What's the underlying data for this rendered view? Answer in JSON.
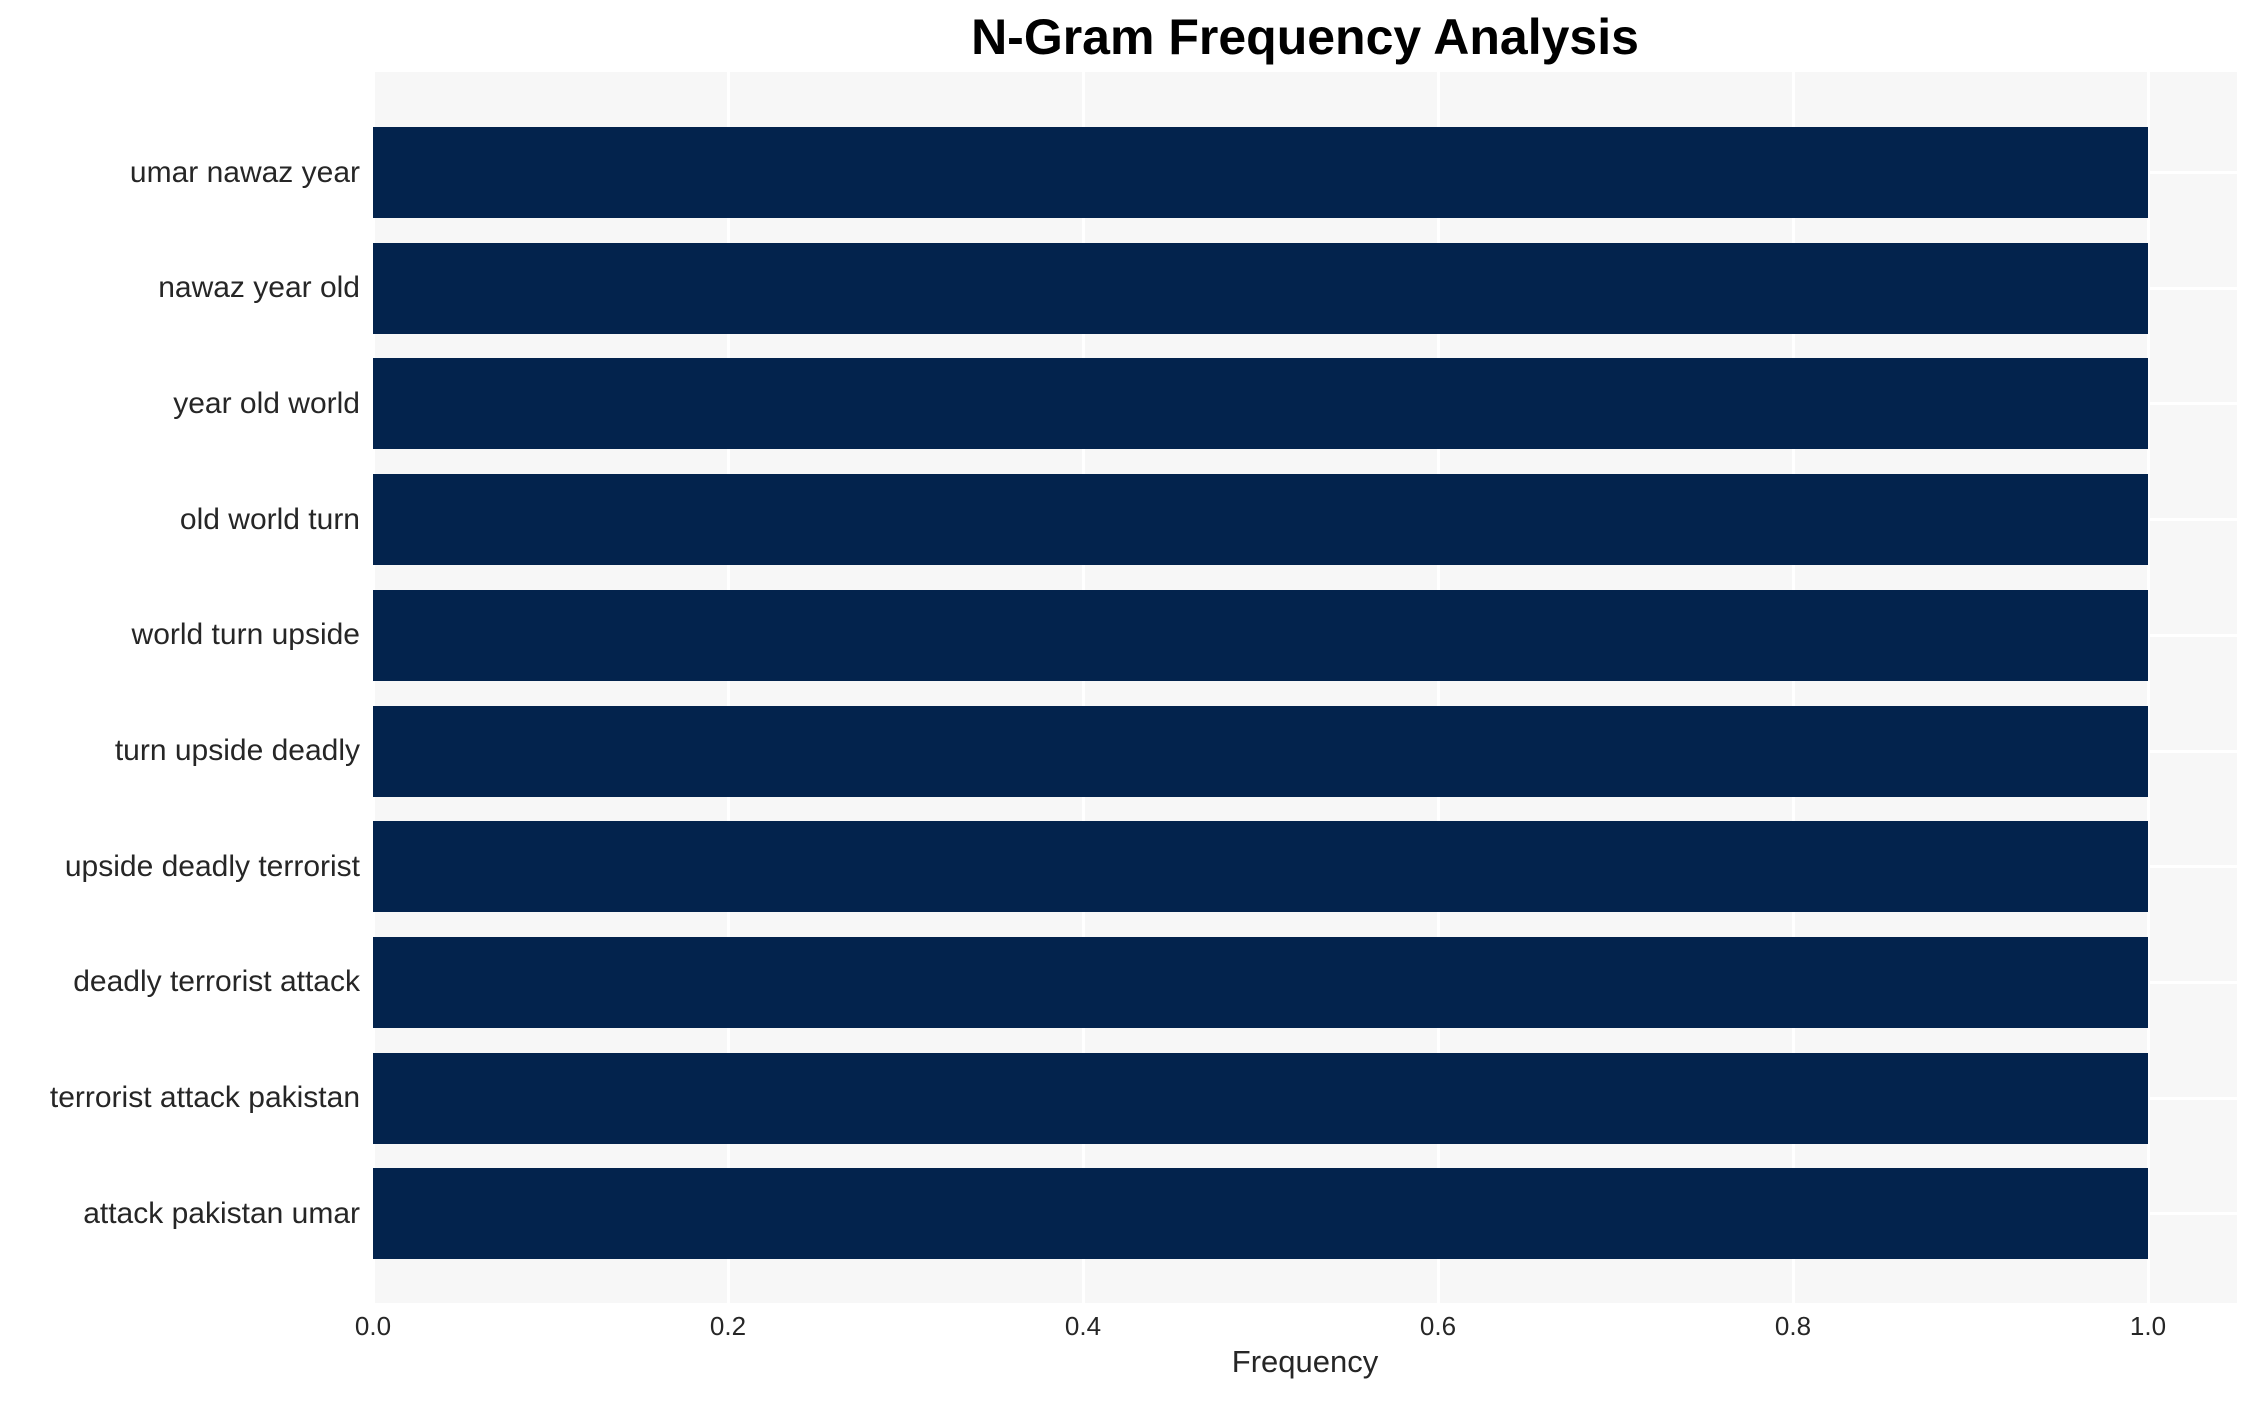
{
  "chart_data": {
    "type": "bar",
    "orientation": "horizontal",
    "title": "N-Gram Frequency Analysis",
    "xlabel": "Frequency",
    "ylabel": "",
    "categories": [
      "umar nawaz year",
      "nawaz year old",
      "year old world",
      "old world turn",
      "world turn upside",
      "turn upside deadly",
      "upside deadly terrorist",
      "deadly terrorist attack",
      "terrorist attack pakistan",
      "attack pakistan umar"
    ],
    "values": [
      1.0,
      1.0,
      1.0,
      1.0,
      1.0,
      1.0,
      1.0,
      1.0,
      1.0,
      1.0
    ],
    "xticks": [
      "0.0",
      "0.2",
      "0.4",
      "0.6",
      "0.8",
      "1.0"
    ],
    "xlim": [
      0.0,
      1.05
    ],
    "grid": true,
    "colors": {
      "bar": "#03234d",
      "plot_background": "#f7f7f7",
      "gridline": "#ffffff",
      "tick_text": "#262626",
      "title_text": "#000000"
    }
  }
}
